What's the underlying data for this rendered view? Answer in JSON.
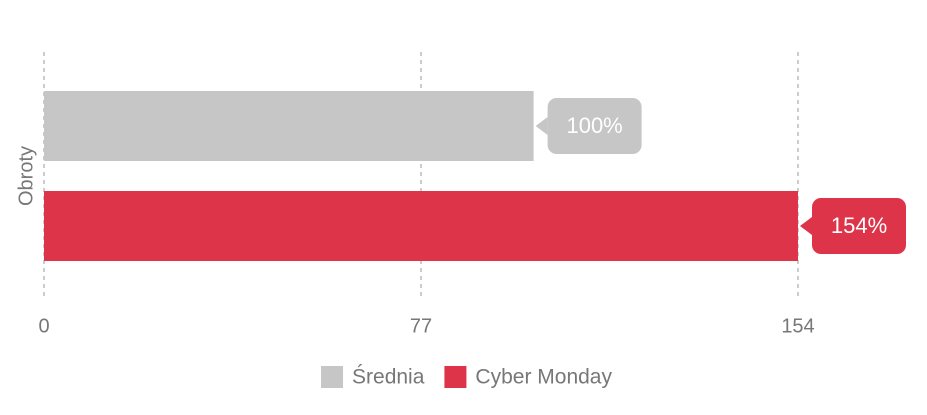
{
  "chart_data": {
    "type": "bar",
    "orientation": "horizontal",
    "categories": [
      "Obroty"
    ],
    "series": [
      {
        "name": "Średnia",
        "color": "#c6c6c6",
        "values": [
          100
        ],
        "value_labels": [
          "100%"
        ]
      },
      {
        "name": "Cyber Monday",
        "color": "#de3449",
        "values": [
          154
        ],
        "value_labels": [
          "154%"
        ]
      }
    ],
    "xlim": [
      0,
      154
    ],
    "xticks": [
      0,
      77,
      154
    ],
    "grid": true,
    "legend": "bottom"
  }
}
